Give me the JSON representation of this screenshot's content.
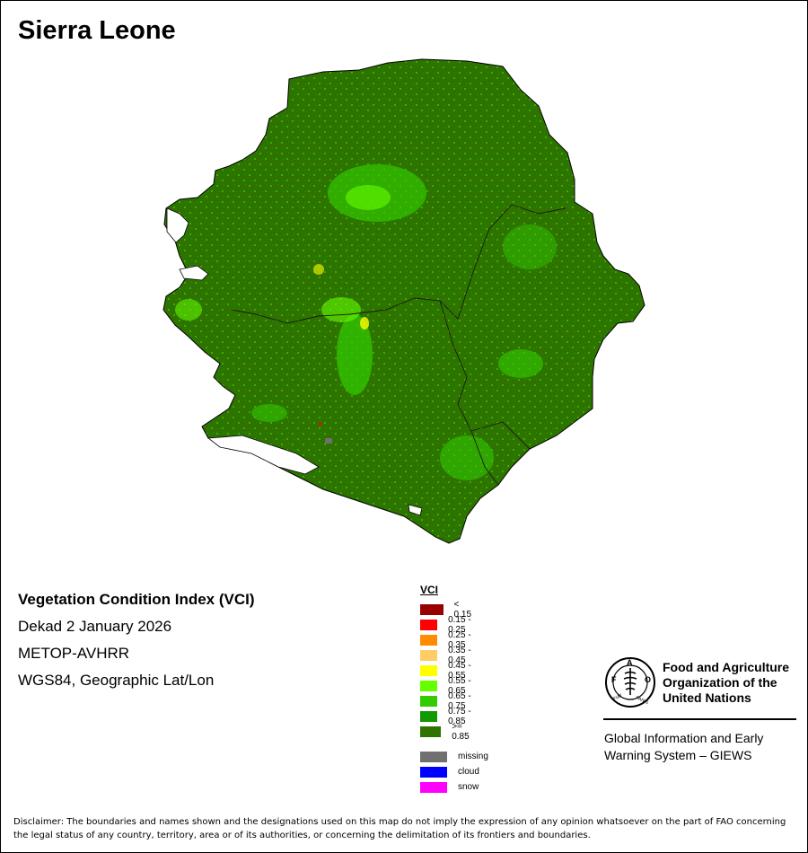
{
  "title": "Sierra Leone",
  "info": {
    "product": "Vegetation Condition Index (VCI)",
    "period": "Dekad 2 January 2026",
    "sensor": "METOP-AVHRR",
    "projection": "WGS84, Geographic Lat/Lon"
  },
  "legend": {
    "title": "VCI",
    "classes": [
      {
        "label": "< 0.15",
        "color": "#990000"
      },
      {
        "label": "0.15 - 0.25",
        "color": "#ff0000"
      },
      {
        "label": "0.25 - 0.35",
        "color": "#ff8c00"
      },
      {
        "label": "0.35 - 0.45",
        "color": "#ffcc66"
      },
      {
        "label": "0.45 - 0.55",
        "color": "#ffff00"
      },
      {
        "label": "0.55 - 0.65",
        "color": "#66ff00"
      },
      {
        "label": "0.65 - 0.75",
        "color": "#33cc00"
      },
      {
        "label": "0.75 - 0.85",
        "color": "#119900"
      },
      {
        "label": ">= 0.85",
        "color": "#2e7300"
      }
    ],
    "extra": [
      {
        "label": "missing",
        "color": "#707070"
      },
      {
        "label": "cloud",
        "color": "#0000ff"
      },
      {
        "label": "snow",
        "color": "#ff00ff"
      }
    ]
  },
  "org": {
    "name_line1": "Food and Agriculture",
    "name_line2": "Organization of the",
    "name_line3": "United Nations",
    "fao_letters": "F A O",
    "fiat_panis": "FIAT PANIS",
    "giews_line1": "Global Information and Early",
    "giews_line2": "Warning System – GIEWS"
  },
  "disclaimer": "Disclaimer: The boundaries and names shown and the designations used on this map do not imply the expression of any opinion whatsoever on the part of FAO concerning the legal status of any country, territory, area or of its authorities, or concerning the delimitation of its frontiers and boundaries."
}
